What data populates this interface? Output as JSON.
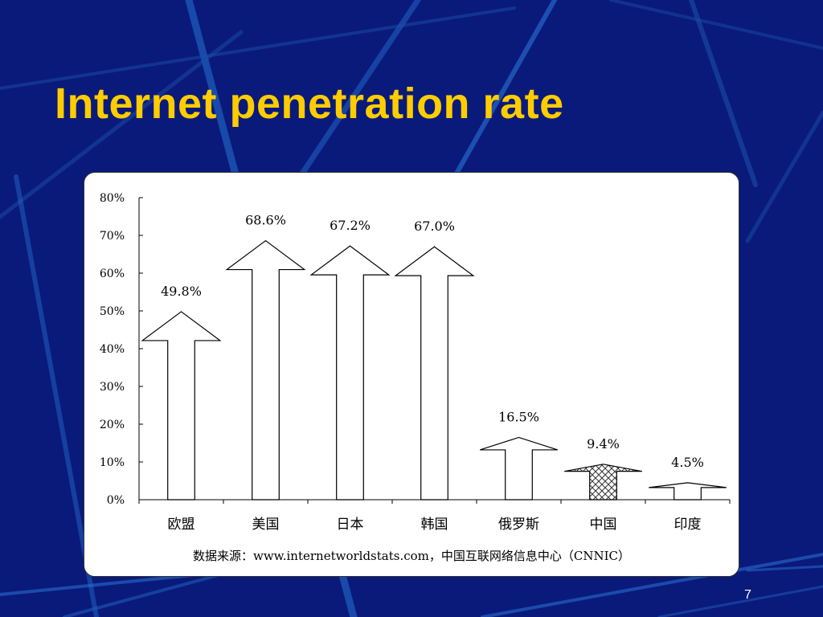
{
  "slide": {
    "title": "Internet penetration rate",
    "page_number": "7"
  },
  "colors": {
    "background": "#0a1a7a",
    "title": "#ffcc00",
    "panel": "#ffffff",
    "streak": "#1a6cc8"
  },
  "chart_data": {
    "type": "bar",
    "style": "arrow-bars",
    "categories": [
      "欧盟",
      "美国",
      "日本",
      "韩国",
      "俄罗斯",
      "中国",
      "印度"
    ],
    "values": [
      49.8,
      68.6,
      67.2,
      67.0,
      16.5,
      9.4,
      4.5
    ],
    "value_labels": [
      "49.8%",
      "68.6%",
      "67.2%",
      "67.0%",
      "16.5%",
      "9.4%",
      "4.5%"
    ],
    "fills": [
      "white",
      "white",
      "white",
      "white",
      "white",
      "crosshatch",
      "white"
    ],
    "yticks": [
      "0%",
      "10%",
      "20%",
      "30%",
      "40%",
      "50%",
      "60%",
      "70%",
      "80%"
    ],
    "ylim": [
      0,
      80
    ],
    "grid": false,
    "legend": "none"
  },
  "source_note": "数据来源：www.internetworldstats.com，中国互联网络信息中心（CNNIC）"
}
